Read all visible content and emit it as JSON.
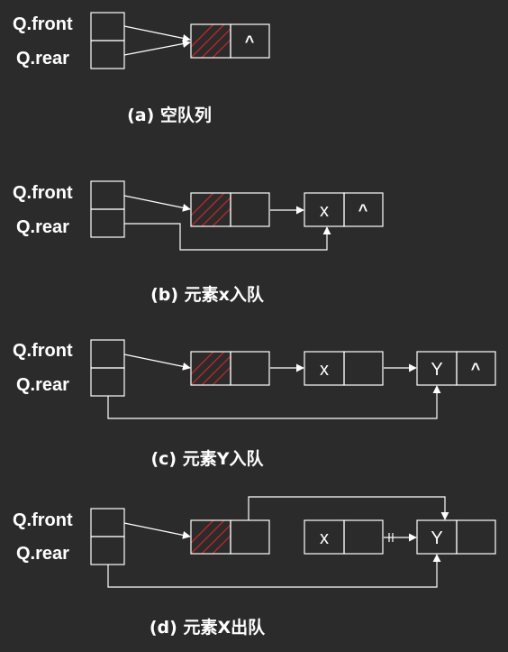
{
  "panels": [
    {
      "id": "a",
      "front_label": "Q.front",
      "rear_label": "Q.rear",
      "caption": "(a) 空队列",
      "nodes": [
        {
          "value": "",
          "next": "^"
        }
      ]
    },
    {
      "id": "b",
      "front_label": "Q.front",
      "rear_label": "Q.rear",
      "caption": "(b) 元素x入队",
      "nodes": [
        {
          "value": "",
          "next": ""
        },
        {
          "value": "x",
          "next": "^"
        }
      ]
    },
    {
      "id": "c",
      "front_label": "Q.front",
      "rear_label": "Q.rear",
      "caption": "(c) 元素Y入队",
      "nodes": [
        {
          "value": "",
          "next": ""
        },
        {
          "value": "x",
          "next": ""
        },
        {
          "value": "Y",
          "next": "^"
        }
      ]
    },
    {
      "id": "d",
      "front_label": "Q.front",
      "rear_label": "Q.rear",
      "caption": "(d) 元素X出队",
      "nodes": [
        {
          "value": "",
          "next": ""
        },
        {
          "value": "x",
          "next": ""
        },
        {
          "value": "Y",
          "next": ""
        }
      ]
    }
  ]
}
